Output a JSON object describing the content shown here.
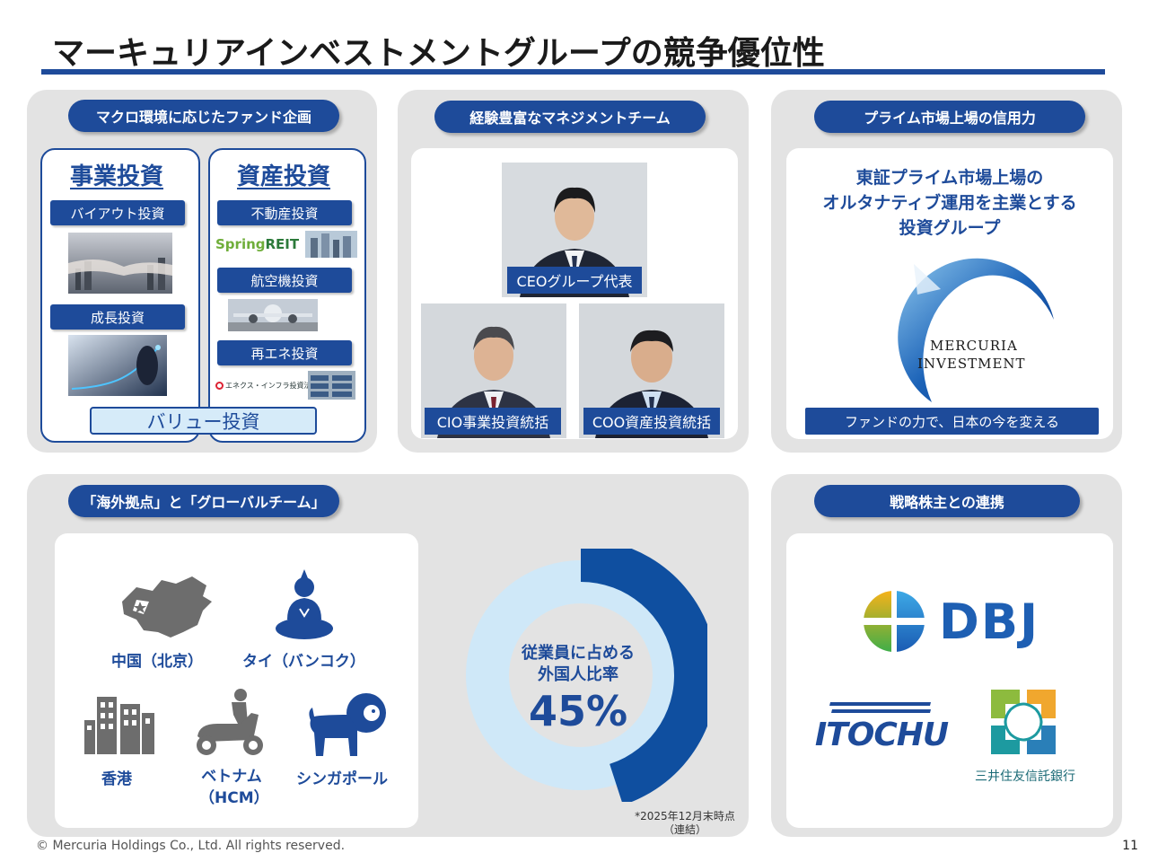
{
  "title": "マーキュリアインベストメントグループの競争優位性",
  "panel1": {
    "pill": "マクロ環境に応じたファンド企画",
    "business": {
      "heading": "事業投資",
      "tags": [
        "バイアウト投資",
        "成長投資"
      ]
    },
    "asset": {
      "heading": "資産投資",
      "tags": [
        "不動産投資",
        "航空機投資",
        "再エネ投資"
      ],
      "spring_logo_a": "Spring",
      "spring_logo_b": "REIT",
      "enex_logo": "エネクス・インフラ投資法人"
    },
    "value": "バリュー投資"
  },
  "panel2": {
    "pill": "経験豊富なマネジメントチーム",
    "ceo": "CEOグループ代表",
    "cio": "CIO事業投資統括",
    "coo": "COO資産投資統括"
  },
  "panel3": {
    "pill": "プライム市場上場の信用力",
    "headline": [
      "東証プライム市場上場の",
      "オルタナティブ運用を主業とする",
      "投資グループ"
    ],
    "logo_line1": "MERCURIA",
    "logo_line2": "INVESTMENT",
    "tagline": "ファンドの力で、日本の今を変える"
  },
  "panel4": {
    "pill": "「海外拠点」と「グローバルチーム」",
    "locations": {
      "china": "中国（北京）",
      "thai": "タイ（バンコク）",
      "hk": "香港",
      "vietnam_1": "ベトナム",
      "vietnam_2": "（HCM）",
      "singapore": "シンガポール"
    },
    "donut": {
      "label_1": "従業員に占める",
      "label_2": "外国人比率",
      "value_text": "45%",
      "share": 0.45,
      "color_main": "#0f4fa0",
      "color_rest": "#cfe8f8"
    },
    "note_1": "*2025年12月末時点",
    "note_2": "（連結）"
  },
  "panel5": {
    "pill": "戦略株主との連携",
    "dbj": "DBJ",
    "itochu": "ITOCHU",
    "smtb": "三井住友信託銀行"
  },
  "footer": "© Mercuria Holdings Co., Ltd. All rights reserved.",
  "page_number": "11"
}
